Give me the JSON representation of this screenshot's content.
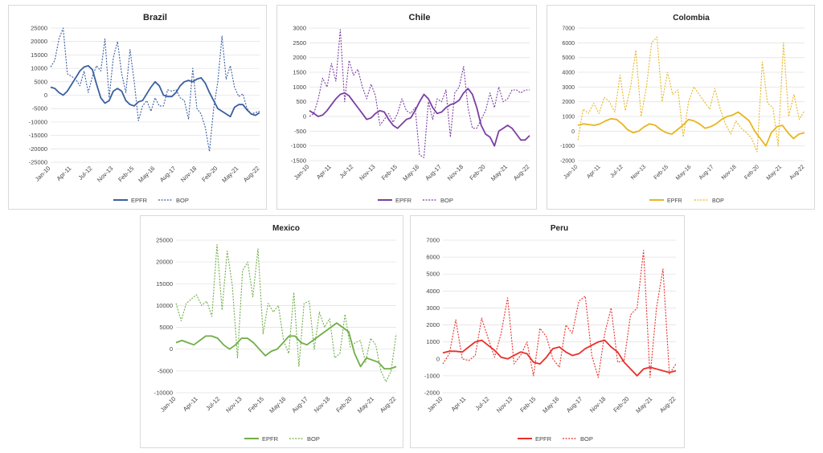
{
  "chart_data": [
    {
      "type": "line",
      "title": "Brazil",
      "ylim": [
        -25000,
        25000
      ],
      "yticks": [
        25000,
        20000,
        15000,
        10000,
        5000,
        0,
        -5000,
        -10000,
        -15000,
        -20000,
        -25000
      ],
      "xticks": [
        "Jan-10",
        "Apr-11",
        "Jul-12",
        "Nov-13",
        "Feb-15",
        "May-16",
        "Aug-17",
        "Nov-18",
        "Feb-20",
        "May-21",
        "Aug-22"
      ],
      "color": "#3a5fa0",
      "series": [
        {
          "name": "EPFR",
          "style": "solid",
          "values": [
            3000,
            2500,
            1000,
            0,
            1500,
            4000,
            6500,
            9000,
            10500,
            11000,
            9500,
            4000,
            -1000,
            -3000,
            -2000,
            1500,
            2500,
            1500,
            -2000,
            -3500,
            -4000,
            -2500,
            -2000,
            500,
            3000,
            5000,
            3500,
            0,
            -500,
            -500,
            1000,
            3500,
            5000,
            5500,
            5000,
            6000,
            6500,
            4500,
            1000,
            -2000,
            -5000,
            -6000,
            -7000,
            -8000,
            -4500,
            -3500,
            -3500,
            -5500,
            -7000,
            -7500,
            -6500
          ]
        },
        {
          "name": "BOP",
          "style": "dotted",
          "values": [
            10500,
            13000,
            21000,
            25000,
            8000,
            7000,
            6000,
            3500,
            9000,
            1000,
            7000,
            11000,
            9000,
            21000,
            -1000,
            14000,
            20000,
            8000,
            1000,
            17000,
            5000,
            -9500,
            -4000,
            -2000,
            -6000,
            -1000,
            -4000,
            -4000,
            2000,
            1500,
            2000,
            -1000,
            -2000,
            -9000,
            10000,
            -5000,
            -7000,
            -12000,
            -21000,
            -5000,
            5000,
            22000,
            6000,
            11000,
            3000,
            -500,
            500,
            -5000,
            -7000,
            -6500,
            -6000
          ]
        }
      ]
    },
    {
      "type": "line",
      "title": "Chile",
      "ylim": [
        -1500,
        3000
      ],
      "yticks": [
        3000,
        2500,
        2000,
        1500,
        1000,
        500,
        0,
        -500,
        -1000,
        -1500
      ],
      "xticks": [
        "Jan-10",
        "Apr-11",
        "Jul-12",
        "Nov-13",
        "Feb-15",
        "May-16",
        "Aug-17",
        "Nov-18",
        "Feb-20",
        "May-21",
        "Aug-22"
      ],
      "color": "#7b3fa2",
      "series": [
        {
          "name": "EPFR",
          "style": "solid",
          "values": [
            200,
            100,
            0,
            50,
            200,
            400,
            600,
            750,
            800,
            700,
            500,
            300,
            100,
            -100,
            -50,
            100,
            200,
            150,
            -100,
            -300,
            -400,
            -250,
            -100,
            -50,
            200,
            500,
            750,
            600,
            300,
            100,
            150,
            300,
            400,
            450,
            550,
            800,
            950,
            750,
            300,
            -300,
            -600,
            -700,
            -1000,
            -500,
            -400,
            -300,
            -400,
            -600,
            -800,
            -800,
            -650
          ]
        },
        {
          "name": "BOP",
          "style": "dotted",
          "values": [
            0,
            100,
            600,
            1300,
            1000,
            1800,
            1200,
            2950,
            500,
            1900,
            1400,
            1600,
            1000,
            600,
            1100,
            700,
            -300,
            -100,
            100,
            -200,
            100,
            600,
            200,
            100,
            300,
            -1300,
            -1400,
            500,
            -100,
            600,
            500,
            900,
            -700,
            800,
            1000,
            1700,
            300,
            -400,
            -400,
            -100,
            200,
            800,
            300,
            1000,
            500,
            600,
            900,
            900,
            800,
            900,
            900
          ]
        }
      ]
    },
    {
      "type": "line",
      "title": "Colombia",
      "ylim": [
        -2000,
        7000
      ],
      "yticks": [
        7000,
        6000,
        5000,
        4000,
        3000,
        2000,
        1000,
        0,
        -1000,
        -2000
      ],
      "xticks": [
        "Jan-10",
        "Apr-11",
        "Jul-12",
        "Nov-13",
        "Feb-15",
        "May-16",
        "Aug-17",
        "Nov-18",
        "Feb-20",
        "May-21",
        "Aug-22"
      ],
      "color": "#e8b520",
      "series": [
        {
          "name": "EPFR",
          "style": "solid",
          "values": [
            400,
            500,
            450,
            400,
            500,
            700,
            850,
            800,
            500,
            100,
            -100,
            0,
            300,
            500,
            400,
            100,
            -100,
            -200,
            100,
            400,
            800,
            700,
            500,
            200,
            300,
            500,
            800,
            1000,
            1100,
            1300,
            1000,
            700,
            0,
            -500,
            -1000,
            -100,
            300,
            400,
            -100,
            -500,
            -200,
            -100
          ]
        },
        {
          "name": "BOP",
          "style": "dotted",
          "values": [
            -600,
            1500,
            1200,
            1900,
            1200,
            2300,
            2000,
            1300,
            3800,
            1400,
            3000,
            5500,
            1000,
            3000,
            6000,
            6400,
            2000,
            4000,
            2500,
            2800,
            -400,
            2000,
            3000,
            2500,
            2000,
            1500,
            2900,
            1500,
            500,
            -200,
            700,
            200,
            -100,
            -500,
            -1400,
            4700,
            1900,
            1600,
            -1000,
            6000,
            1000,
            2500,
            800,
            1400
          ]
        }
      ]
    },
    {
      "type": "line",
      "title": "Mexico",
      "ylim": [
        -10000,
        25000
      ],
      "yticks": [
        25000,
        20000,
        15000,
        10000,
        5000,
        0,
        -5000,
        -10000
      ],
      "xticks": [
        "Jan-10",
        "Apr-11",
        "Jul-12",
        "Nov-13",
        "Feb-15",
        "May-16",
        "Aug-17",
        "Nov-18",
        "Feb-20",
        "May-21",
        "Aug-22"
      ],
      "color": "#70ad47",
      "series": [
        {
          "name": "EPFR",
          "style": "solid",
          "values": [
            1500,
            2000,
            1500,
            1000,
            2000,
            3000,
            3000,
            2500,
            1000,
            0,
            1000,
            2500,
            2500,
            1500,
            0,
            -1500,
            -500,
            0,
            1500,
            3000,
            3000,
            1500,
            1000,
            2000,
            3000,
            4000,
            5000,
            6000,
            5000,
            4000,
            -1000,
            -4000,
            -2000,
            -2500,
            -3000,
            -4500,
            -4500,
            -4000
          ]
        },
        {
          "name": "BOP",
          "style": "dotted",
          "values": [
            10500,
            6500,
            10500,
            11500,
            12500,
            10000,
            11000,
            7500,
            24000,
            9000,
            22500,
            14500,
            -2000,
            18000,
            20000,
            12000,
            23000,
            3500,
            10500,
            8500,
            10000,
            2000,
            -1000,
            13000,
            -4000,
            10500,
            11000,
            0,
            8500,
            5000,
            7000,
            -2000,
            -1000,
            8000,
            500,
            1500,
            2000,
            -3000,
            2500,
            1000,
            -5000,
            -7500,
            -5000,
            3500
          ]
        }
      ]
    },
    {
      "type": "line",
      "title": "Peru",
      "ylim": [
        -2000,
        7000
      ],
      "yticks": [
        7000,
        6000,
        5000,
        4000,
        3000,
        2000,
        1000,
        0,
        -1000,
        -2000
      ],
      "xticks": [
        "Jan-10",
        "Apr-11",
        "Jul-12",
        "Nov-13",
        "Feb-15",
        "May-16",
        "Aug-17",
        "Nov-18",
        "Feb-20",
        "May-21",
        "Aug-22"
      ],
      "color": "#e8302a",
      "series": [
        {
          "name": "EPFR",
          "style": "solid",
          "values": [
            350,
            450,
            450,
            400,
            700,
            1000,
            1100,
            800,
            500,
            100,
            0,
            200,
            400,
            300,
            -200,
            -300,
            100,
            600,
            700,
            400,
            200,
            300,
            600,
            800,
            1000,
            1100,
            700,
            400,
            -200,
            -600,
            -1000,
            -600,
            -500,
            -600,
            -700,
            -800,
            -700
          ]
        },
        {
          "name": "BOP",
          "style": "dotted",
          "values": [
            -300,
            300,
            2300,
            0,
            -100,
            200,
            2400,
            1200,
            100,
            1500,
            3600,
            -300,
            200,
            1000,
            -1000,
            1800,
            1300,
            0,
            -500,
            2000,
            1500,
            3400,
            3700,
            200,
            -1100,
            1500,
            3000,
            -200,
            -100,
            2600,
            3000,
            6400,
            -1100,
            3000,
            5300,
            -900,
            -300
          ]
        }
      ]
    }
  ]
}
